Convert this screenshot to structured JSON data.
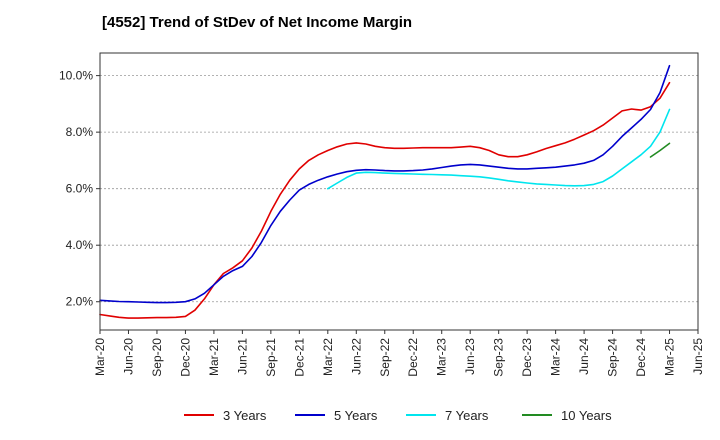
{
  "chart_data": {
    "type": "line",
    "title": "[4552]  Trend of StDev of Net Income Margin",
    "xlabel": "",
    "ylabel": "",
    "x_ticks": [
      "Mar-20",
      "Jun-20",
      "Sep-20",
      "Dec-20",
      "Mar-21",
      "Jun-21",
      "Sep-21",
      "Dec-21",
      "Mar-22",
      "Jun-22",
      "Sep-22",
      "Dec-22",
      "Mar-23",
      "Jun-23",
      "Sep-23",
      "Dec-23",
      "Mar-24",
      "Jun-24",
      "Sep-24",
      "Dec-24",
      "Mar-25",
      "Jun-25"
    ],
    "y_ticks": [
      "2.0%",
      "4.0%",
      "6.0%",
      "8.0%",
      "10.0%"
    ],
    "y_tick_values": [
      2,
      4,
      6,
      8,
      10
    ],
    "ylim": [
      1.0,
      10.8
    ],
    "xlim": [
      "Mar-20",
      "Jun-25"
    ],
    "grid": "horizontal dashed",
    "legend_position": "bottom",
    "series": [
      {
        "name": "3 Years",
        "color": "#e00000",
        "x": [
          "Mar-20",
          "Apr-20",
          "May-20",
          "Jun-20",
          "Jul-20",
          "Aug-20",
          "Sep-20",
          "Oct-20",
          "Nov-20",
          "Dec-20",
          "Jan-21",
          "Feb-21",
          "Mar-21",
          "Apr-21",
          "May-21",
          "Jun-21",
          "Jul-21",
          "Aug-21",
          "Sep-21",
          "Oct-21",
          "Nov-21",
          "Dec-21",
          "Jan-22",
          "Feb-22",
          "Mar-22",
          "Apr-22",
          "May-22",
          "Jun-22",
          "Jul-22",
          "Aug-22",
          "Sep-22",
          "Oct-22",
          "Nov-22",
          "Dec-22",
          "Jan-23",
          "Feb-23",
          "Mar-23",
          "Apr-23",
          "May-23",
          "Jun-23",
          "Jul-23",
          "Aug-23",
          "Sep-23",
          "Oct-23",
          "Nov-23",
          "Dec-23",
          "Jan-24",
          "Feb-24",
          "Mar-24",
          "Apr-24",
          "May-24",
          "Jun-24",
          "Jul-24",
          "Aug-24",
          "Sep-24",
          "Oct-24",
          "Nov-24",
          "Dec-24",
          "Jan-25",
          "Feb-25",
          "Mar-25"
        ],
        "values": [
          1.55,
          1.5,
          1.45,
          1.42,
          1.42,
          1.43,
          1.44,
          1.44,
          1.45,
          1.48,
          1.7,
          2.1,
          2.6,
          3.0,
          3.2,
          3.45,
          3.9,
          4.5,
          5.2,
          5.8,
          6.3,
          6.7,
          7.0,
          7.2,
          7.35,
          7.48,
          7.58,
          7.62,
          7.58,
          7.5,
          7.45,
          7.43,
          7.43,
          7.44,
          7.45,
          7.45,
          7.45,
          7.45,
          7.47,
          7.5,
          7.45,
          7.35,
          7.2,
          7.13,
          7.13,
          7.2,
          7.3,
          7.42,
          7.52,
          7.62,
          7.75,
          7.9,
          8.05,
          8.25,
          8.5,
          8.75,
          8.82,
          8.78,
          8.9,
          9.2,
          9.75
        ]
      },
      {
        "name": "5 Years",
        "color": "#0000cc",
        "x": [
          "Mar-20",
          "Apr-20",
          "May-20",
          "Jun-20",
          "Jul-20",
          "Aug-20",
          "Sep-20",
          "Oct-20",
          "Nov-20",
          "Dec-20",
          "Jan-21",
          "Feb-21",
          "Mar-21",
          "Apr-21",
          "May-21",
          "Jun-21",
          "Jul-21",
          "Aug-21",
          "Sep-21",
          "Oct-21",
          "Nov-21",
          "Dec-21",
          "Jan-22",
          "Feb-22",
          "Mar-22",
          "Apr-22",
          "May-22",
          "Jun-22",
          "Jul-22",
          "Aug-22",
          "Sep-22",
          "Oct-22",
          "Nov-22",
          "Dec-22",
          "Jan-23",
          "Feb-23",
          "Mar-23",
          "Apr-23",
          "May-23",
          "Jun-23",
          "Jul-23",
          "Aug-23",
          "Sep-23",
          "Oct-23",
          "Nov-23",
          "Dec-23",
          "Jan-24",
          "Feb-24",
          "Mar-24",
          "Apr-24",
          "May-24",
          "Jun-24",
          "Jul-24",
          "Aug-24",
          "Sep-24",
          "Oct-24",
          "Nov-24",
          "Dec-24",
          "Jan-25",
          "Feb-25",
          "Mar-25"
        ],
        "values": [
          2.05,
          2.03,
          2.01,
          2.0,
          1.99,
          1.98,
          1.97,
          1.97,
          1.98,
          2.0,
          2.1,
          2.3,
          2.6,
          2.9,
          3.1,
          3.25,
          3.6,
          4.1,
          4.7,
          5.2,
          5.6,
          5.95,
          6.15,
          6.3,
          6.42,
          6.52,
          6.6,
          6.65,
          6.67,
          6.66,
          6.64,
          6.63,
          6.63,
          6.64,
          6.66,
          6.7,
          6.75,
          6.8,
          6.84,
          6.86,
          6.84,
          6.8,
          6.76,
          6.72,
          6.7,
          6.7,
          6.72,
          6.74,
          6.76,
          6.8,
          6.84,
          6.9,
          7.0,
          7.2,
          7.5,
          7.85,
          8.15,
          8.45,
          8.8,
          9.4,
          10.35
        ]
      },
      {
        "name": "7 Years",
        "color": "#00e5ee",
        "x": [
          "Mar-22",
          "Apr-22",
          "May-22",
          "Jun-22",
          "Jul-22",
          "Aug-22",
          "Sep-22",
          "Oct-22",
          "Nov-22",
          "Dec-22",
          "Jan-23",
          "Feb-23",
          "Mar-23",
          "Apr-23",
          "May-23",
          "Jun-23",
          "Jul-23",
          "Aug-23",
          "Sep-23",
          "Oct-23",
          "Nov-23",
          "Dec-23",
          "Jan-24",
          "Feb-24",
          "Mar-24",
          "Apr-24",
          "May-24",
          "Jun-24",
          "Jul-24",
          "Aug-24",
          "Sep-24",
          "Oct-24",
          "Nov-24",
          "Dec-24",
          "Jan-25",
          "Feb-25",
          "Mar-25"
        ],
        "values": [
          6.0,
          6.2,
          6.4,
          6.55,
          6.58,
          6.57,
          6.55,
          6.54,
          6.53,
          6.52,
          6.51,
          6.5,
          6.49,
          6.48,
          6.46,
          6.44,
          6.42,
          6.38,
          6.33,
          6.28,
          6.24,
          6.2,
          6.17,
          6.15,
          6.13,
          6.11,
          6.1,
          6.11,
          6.15,
          6.25,
          6.45,
          6.7,
          6.95,
          7.2,
          7.5,
          8.0,
          8.8
        ]
      },
      {
        "name": "10 Years",
        "color": "#228b22",
        "x": [
          "Jan-25",
          "Feb-25",
          "Mar-25"
        ],
        "values": [
          7.12,
          7.35,
          7.6
        ]
      }
    ]
  }
}
